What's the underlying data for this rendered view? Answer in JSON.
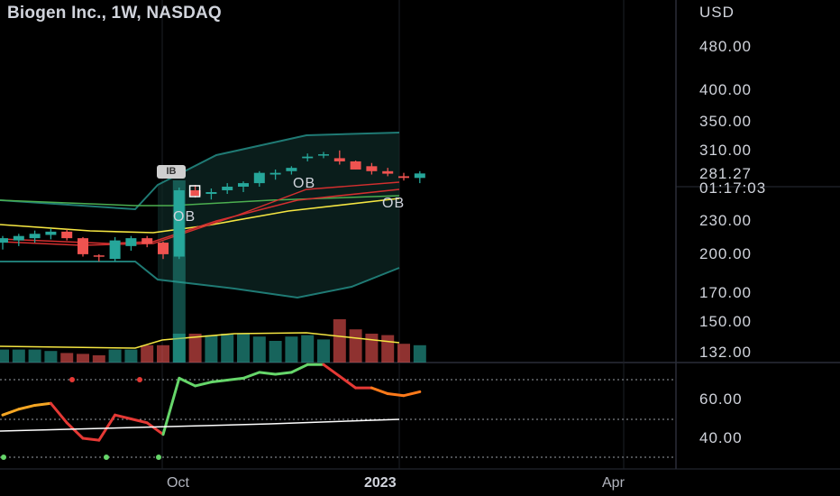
{
  "header": {
    "title": "Biogen Inc., 1W, NASDAQ"
  },
  "price_axis": {
    "currency": "USD",
    "labels": [
      {
        "text": "480.00",
        "value": 480
      },
      {
        "text": "400.00",
        "value": 400
      },
      {
        "text": "350.00",
        "value": 350
      },
      {
        "text": "310.00",
        "value": 310
      },
      {
        "text": "230.00",
        "value": 230
      },
      {
        "text": "200.00",
        "value": 200
      },
      {
        "text": "170.00",
        "value": 170
      },
      {
        "text": "150.00",
        "value": 150
      },
      {
        "text": "132.00",
        "value": 132
      }
    ],
    "current_price": "281.27",
    "countdown": "01:17:03"
  },
  "indicator_axis": {
    "labels": [
      {
        "text": "60.00",
        "value": 60
      },
      {
        "text": "40.00",
        "value": 40
      }
    ]
  },
  "time_axis": {
    "labels": [
      {
        "text": "Oct",
        "bold": false
      },
      {
        "text": "2023",
        "bold": true
      },
      {
        "text": "Apr",
        "bold": false
      }
    ]
  },
  "annotations": {
    "ob_labels": [
      "OB",
      "OB",
      "OB"
    ],
    "badge": "IB"
  },
  "colors": {
    "background": "#000000",
    "up": "#26a69a",
    "down": "#ef5350",
    "band": "#1f7a74",
    "ma_yellow": "#f5e642",
    "ma_red": "#d32f2f",
    "ma_green": "#4caf50",
    "rsi_green": "#66d66a",
    "rsi_red": "#e53935"
  },
  "chart_data": {
    "type": "candlestick",
    "symbol": "Biogen Inc.",
    "interval": "1W",
    "exchange": "NASDAQ",
    "log_scale": true,
    "candles": [
      {
        "o": 210,
        "h": 216,
        "l": 204,
        "c": 214
      },
      {
        "o": 212,
        "h": 218,
        "l": 207,
        "c": 216
      },
      {
        "o": 214,
        "h": 221,
        "l": 210,
        "c": 218
      },
      {
        "o": 217,
        "h": 223,
        "l": 213,
        "c": 220
      },
      {
        "o": 220,
        "h": 222,
        "l": 212,
        "c": 214
      },
      {
        "o": 214,
        "h": 215,
        "l": 198,
        "c": 200
      },
      {
        "o": 199,
        "h": 200,
        "l": 194,
        "c": 198
      },
      {
        "o": 196,
        "h": 215,
        "l": 194,
        "c": 212
      },
      {
        "o": 207,
        "h": 216,
        "l": 203,
        "c": 214
      },
      {
        "o": 214,
        "h": 216,
        "l": 206,
        "c": 209
      },
      {
        "o": 210,
        "h": 211,
        "l": 196,
        "c": 200
      },
      {
        "o": 198,
        "h": 265,
        "l": 196,
        "c": 262
      },
      {
        "o": 262,
        "h": 268,
        "l": 254,
        "c": 256
      },
      {
        "o": 258,
        "h": 264,
        "l": 252,
        "c": 260
      },
      {
        "o": 262,
        "h": 270,
        "l": 258,
        "c": 266
      },
      {
        "o": 266,
        "h": 272,
        "l": 260,
        "c": 270
      },
      {
        "o": 270,
        "h": 284,
        "l": 266,
        "c": 282
      },
      {
        "o": 280,
        "h": 286,
        "l": 274,
        "c": 282
      },
      {
        "o": 284,
        "h": 290,
        "l": 280,
        "c": 288
      },
      {
        "o": 300,
        "h": 306,
        "l": 296,
        "c": 302
      },
      {
        "o": 304,
        "h": 308,
        "l": 300,
        "c": 305
      },
      {
        "o": 300,
        "h": 310,
        "l": 292,
        "c": 296
      },
      {
        "o": 296,
        "h": 297,
        "l": 286,
        "c": 286
      },
      {
        "o": 290,
        "h": 294,
        "l": 280,
        "c": 284
      },
      {
        "o": 284,
        "h": 288,
        "l": 278,
        "c": 281
      },
      {
        "o": 278,
        "h": 282,
        "l": 273,
        "c": 276
      },
      {
        "o": 276,
        "h": 284,
        "l": 270,
        "c": 281.27
      }
    ],
    "volume_fraction": [
      0.45,
      0.45,
      0.45,
      0.4,
      0.33,
      0.3,
      0.25,
      0.45,
      0.45,
      0.6,
      0.6,
      1.0,
      1.0,
      0.95,
      1.0,
      1.0,
      0.9,
      0.75,
      0.9,
      0.95,
      0.8,
      1.5,
      1.15,
      1.0,
      0.95,
      0.65,
      0.6
    ],
    "rsi": [
      52,
      55,
      57,
      58,
      48,
      40,
      39,
      52,
      50,
      48,
      42,
      71,
      67,
      69,
      70,
      71,
      74,
      73,
      74,
      78,
      78,
      72,
      66,
      66,
      63,
      62,
      64
    ],
    "ylim_price": [
      125,
      560
    ],
    "ylim_rsi": [
      30,
      80
    ]
  }
}
